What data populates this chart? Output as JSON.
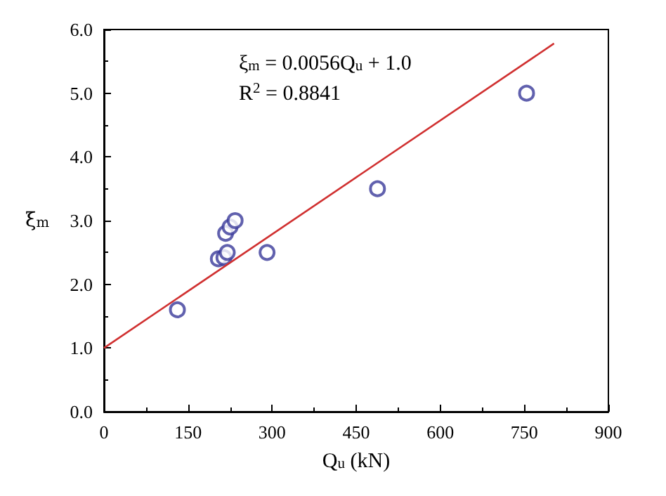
{
  "chart_data": {
    "type": "scatter",
    "xlabel": "Q$_{u}$ (kN)",
    "ylabel": "ξ$_{m}$",
    "annotations": [
      "ξ$_{m}$ = 0.0056Q$_{u}$ + 1.0",
      "R$^{2}$ = 0.8841"
    ],
    "xlim": [
      0,
      900
    ],
    "xticks": [
      0,
      150,
      300,
      450,
      600,
      750,
      900
    ],
    "ylim": [
      0,
      6
    ],
    "yticks": [
      {
        "value": 0,
        "label": "0.0"
      },
      {
        "value": 1,
        "label": "1.0"
      },
      {
        "value": 2,
        "label": "2.0"
      },
      {
        "value": 3,
        "label": "3.0"
      },
      {
        "value": 4,
        "label": "4.0"
      },
      {
        "value": 5,
        "label": "5.0"
      },
      {
        "value": 6,
        "label": "6.0"
      }
    ],
    "grid": false,
    "marker": "circle",
    "series": [
      {
        "color": "#3a3a9a",
        "x": [
          131,
          204,
          214,
          220,
          217,
          225,
          234,
          291,
          488,
          754
        ],
        "values": [
          1.6,
          2.4,
          2.42,
          2.5,
          2.8,
          2.9,
          3.0,
          2.5,
          3.5,
          5.0
        ]
      },
      {
        "type": "line",
        "color": "#d03030",
        "marker": "none",
        "line_style": "solid",
        "x": [
          0,
          803
        ],
        "values": [
          1.0,
          5.78
        ]
      }
    ]
  }
}
